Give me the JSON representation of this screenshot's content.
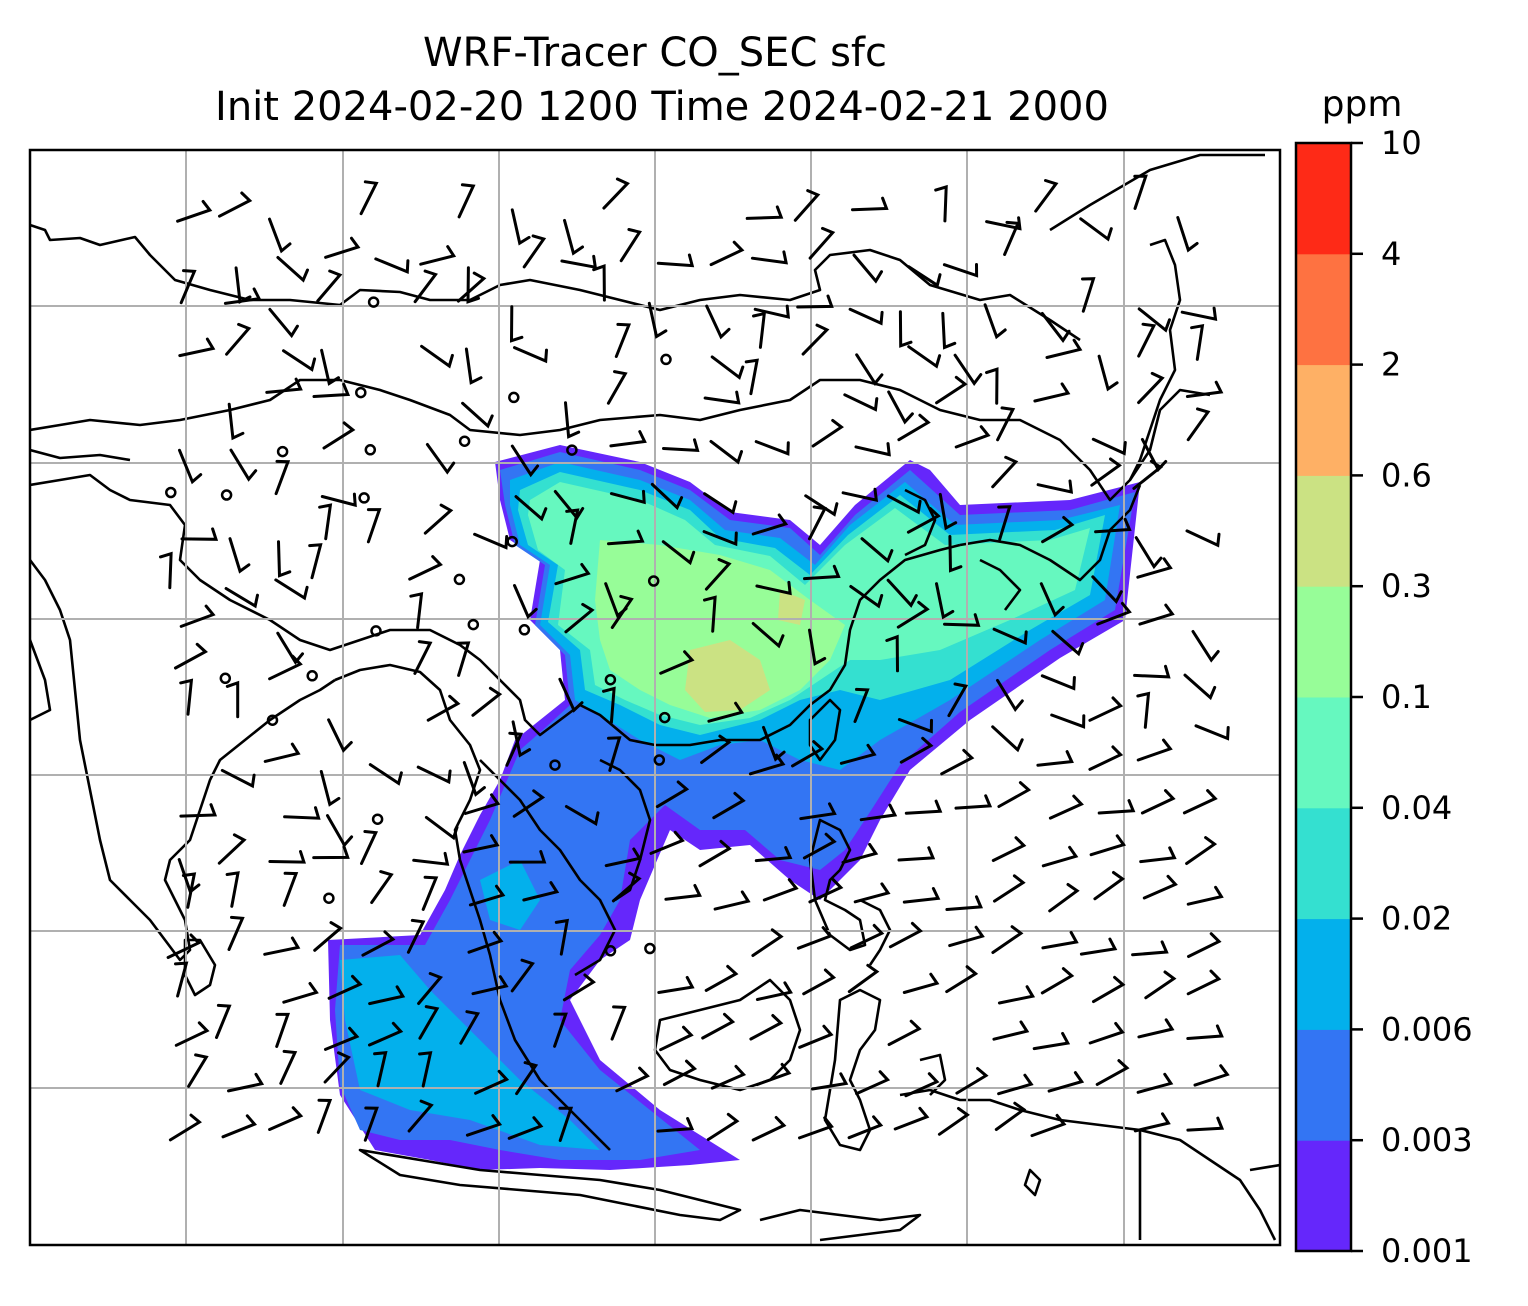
{
  "title_line1": "WRF-Tracer CO_SEC sfc",
  "title_line2": "Init 2024-02-20 1200 Time 2024-02-21 2000",
  "colorbar": {
    "unit": "ppm",
    "ticks": [
      "0.001",
      "0.003",
      "0.006",
      "0.02",
      "0.04",
      "0.1",
      "0.3",
      "0.6",
      "2",
      "4",
      "10"
    ],
    "colors": [
      "#6527fb",
      "#3375f3",
      "#03b0ec",
      "#34e0d0",
      "#66f8bf",
      "#97fd98",
      "#cbe283",
      "#feb065",
      "#fe7241",
      "#fe2a17"
    ]
  }
}
